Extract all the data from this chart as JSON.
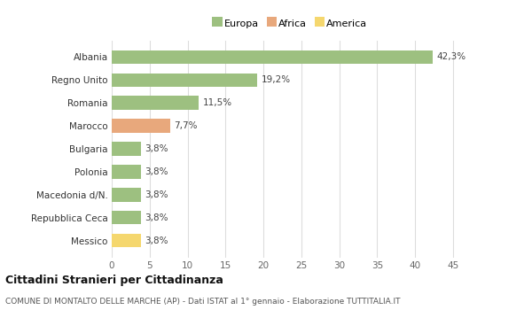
{
  "categories": [
    "Messico",
    "Repubblica Ceca",
    "Macedonia d/N.",
    "Polonia",
    "Bulgaria",
    "Marocco",
    "Romania",
    "Regno Unito",
    "Albania"
  ],
  "values": [
    3.8,
    3.8,
    3.8,
    3.8,
    3.8,
    7.7,
    11.5,
    19.2,
    42.3
  ],
  "labels": [
    "3,8%",
    "3,8%",
    "3,8%",
    "3,8%",
    "3,8%",
    "7,7%",
    "11,5%",
    "19,2%",
    "42,3%"
  ],
  "colors": [
    "#f5d76e",
    "#9dc080",
    "#9dc080",
    "#9dc080",
    "#9dc080",
    "#e8a87c",
    "#9dc080",
    "#9dc080",
    "#9dc080"
  ],
  "legend_items": [
    {
      "label": "Europa",
      "color": "#9dc080"
    },
    {
      "label": "Africa",
      "color": "#e8a87c"
    },
    {
      "label": "America",
      "color": "#f5d76e"
    }
  ],
  "xlim": [
    0,
    47
  ],
  "xticks": [
    0,
    5,
    10,
    15,
    20,
    25,
    30,
    35,
    40,
    45
  ],
  "title": "Cittadini Stranieri per Cittadinanza",
  "subtitle": "COMUNE DI MONTALTO DELLE MARCHE (AP) - Dati ISTAT al 1° gennaio - Elaborazione TUTTITALIA.IT",
  "bg_color": "#ffffff",
  "plot_bg_color": "#ffffff",
  "grid_color": "#dddddd",
  "bar_height": 0.6,
  "label_fontsize": 7.5,
  "ytick_fontsize": 7.5,
  "xtick_fontsize": 7.5,
  "legend_fontsize": 8,
  "title_fontsize": 9,
  "subtitle_fontsize": 6.5
}
